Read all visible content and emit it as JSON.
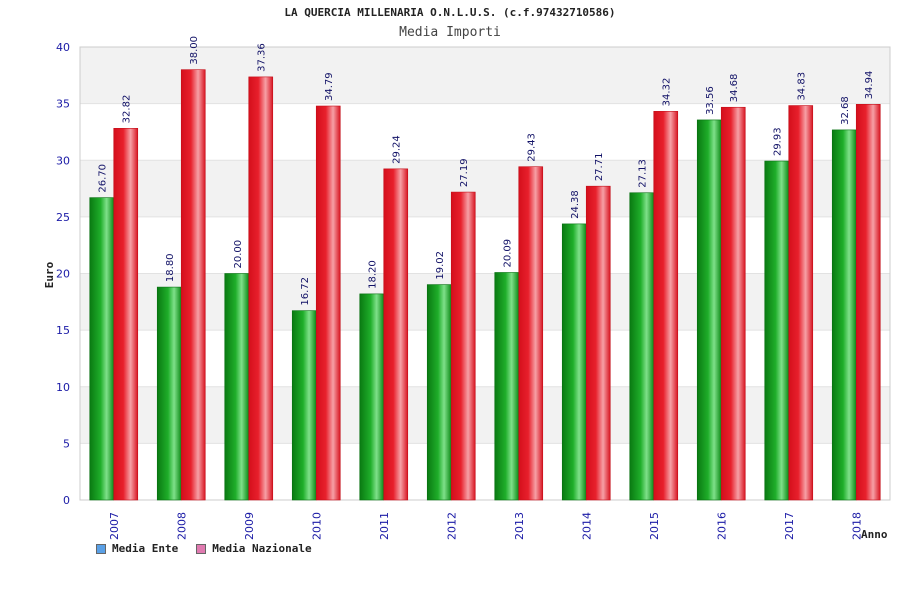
{
  "colors": {
    "ente": "#1fae2a",
    "nazionale": "#e8202c",
    "legend_ente": "#5aa0e6",
    "legend_nazionale": "#e07ab0",
    "band": "#f2f2f2",
    "axis_text": "#1a1aa6"
  },
  "chart_data": {
    "type": "bar",
    "title": "LA QUERCIA MILLENARIA O.N.L.U.S. (c.f.97432710586)",
    "subtitle": "Media Importi",
    "xlabel": "Anno",
    "ylabel": "Euro",
    "ylim": [
      0,
      40
    ],
    "yticks": [
      0,
      5,
      10,
      15,
      20,
      25,
      30,
      35,
      40
    ],
    "categories": [
      "2007",
      "2008",
      "2009",
      "2010",
      "2011",
      "2012",
      "2013",
      "2014",
      "2015",
      "2016",
      "2017",
      "2018"
    ],
    "series": [
      {
        "name": "Media Ente",
        "values": [
          26.7,
          18.8,
          20.0,
          16.72,
          18.2,
          19.02,
          20.09,
          24.38,
          27.13,
          33.56,
          29.93,
          32.68
        ],
        "labels": [
          "26.70",
          "18.80",
          "20.00",
          "16.72",
          "18.20",
          "19.02",
          "20.09",
          "24.38",
          "27.13",
          "33.56",
          "29.93",
          "32.68"
        ]
      },
      {
        "name": "Media Nazionale",
        "values": [
          32.82,
          38.0,
          37.36,
          34.79,
          29.24,
          27.19,
          29.43,
          27.71,
          34.32,
          34.68,
          34.83,
          34.94
        ],
        "labels": [
          "32.82",
          "38.00",
          "37.36",
          "34.79",
          "29.24",
          "27.19",
          "29.43",
          "27.71",
          "34.32",
          "34.68",
          "34.83",
          "34.94"
        ]
      }
    ],
    "legend": [
      "Media Ente",
      "Media Nazionale"
    ],
    "legend_position": "bottom-left"
  }
}
